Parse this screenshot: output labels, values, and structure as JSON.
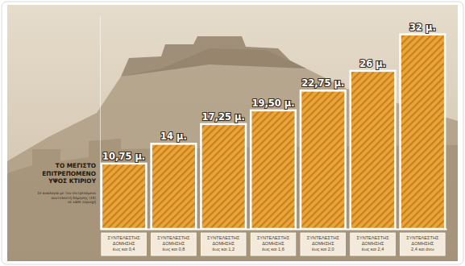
{
  "chart_data": {
    "type": "bar",
    "title": "ΤΟ ΜΕΓΙΣΤΟ\nΕΠΙΤΡΕΠΟΜΕΝΟ\nΥΨΟΣ ΚΤΙΡΙΟΥ",
    "subtitle": "Σε αναλογία με τον επιτρεπόμενο\nσυντελεστή δόμησης (Σδ)\nσε κάθε περιοχή",
    "categories": [
      "ΣΥΝΤΕΛΕΣΤΗΣ\nΔΟΜΗΣΗΣ\nέως και 0,4",
      "ΣΥΝΤΕΛΕΣΤΗΣ\nΔΟΜΗΣΗΣ\nέως και 0,8",
      "ΣΥΝΤΕΛΕΣΤΗΣ\nΔΟΜΗΣΗΣ\nέως και 1,2",
      "ΣΥΝΤΕΛΕΣΤΗΣ\nΔΟΜΗΣΗΣ\nέως και 1,6",
      "ΣΥΝΤΕΛΕΣΤΗΣ\nΔΟΜΗΣΗΣ\nέως και 2,0",
      "ΣΥΝΤΕΛΕΣΤΗΣ\nΔΟΜΗΣΗΣ\nέως και 2,4",
      "ΣΥΝΤΕΛΕΣΤΗΣ\nΔΟΜΗΣΗΣ\n2,4 και άνω"
    ],
    "values": [
      10.75,
      14,
      17.25,
      19.5,
      22.75,
      26,
      32
    ],
    "value_labels": [
      "10,75 μ.",
      "14 μ.",
      "17,25 μ.",
      "19,50 μ.",
      "22,75 μ.",
      "26 μ.",
      "32 μ."
    ],
    "data_labels": true,
    "color": "#e9a43a",
    "ylim": [
      0,
      35
    ],
    "yticks": [],
    "tick_labels": "x"
  }
}
